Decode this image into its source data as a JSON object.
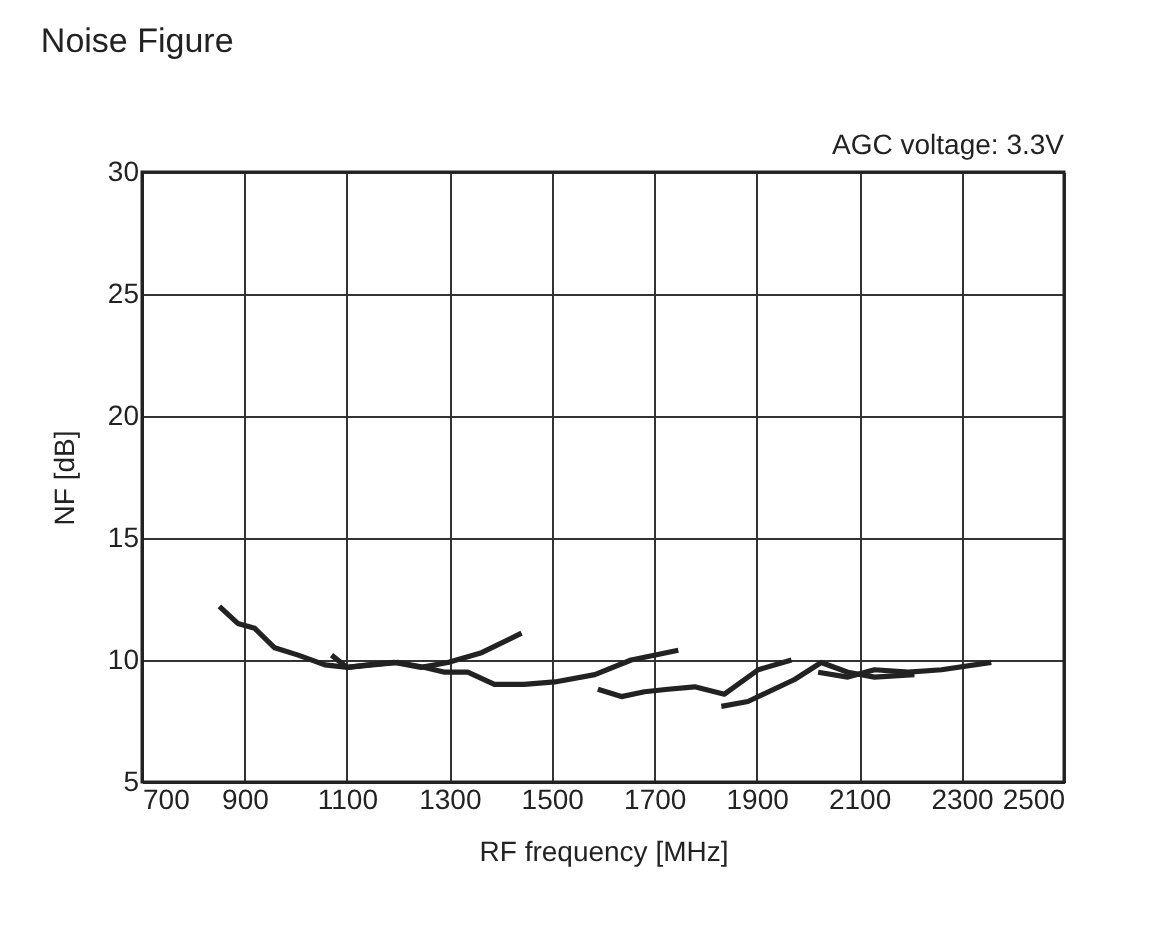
{
  "chart_data": {
    "type": "line",
    "title": "Noise Figure",
    "xlabel": "RF frequency [MHz]",
    "ylabel": "NF [dB]",
    "annotations": [
      "AGC voltage: 3.3V"
    ],
    "xlim": [
      700,
      2500
    ],
    "ylim": [
      5,
      30
    ],
    "xticks": [
      700,
      900,
      1100,
      1300,
      1500,
      1700,
      1900,
      2100,
      2300,
      2500
    ],
    "yticks": [
      5,
      10,
      15,
      20,
      25,
      30
    ],
    "grid": true,
    "marker": "none",
    "line_style": "solid",
    "series": [
      {
        "color": "#222222",
        "x": [
          851,
          887,
          920,
          959,
          1005,
          1057,
          1102,
          1141,
          1193,
          1245,
          1297,
          1363,
          1441
        ],
        "values": [
          12.2,
          11.5,
          11.3,
          10.5,
          10.2,
          9.8,
          9.7,
          9.8,
          9.9,
          9.7,
          9.9,
          10.3,
          11.1
        ]
      },
      {
        "color": "#222222",
        "x": [
          1070,
          1100,
          1150,
          1200,
          1250,
          1291,
          1336,
          1388,
          1446,
          1506,
          1584,
          1655,
          1747
        ],
        "values": [
          10.2,
          9.7,
          9.8,
          9.9,
          9.7,
          9.5,
          9.5,
          9.0,
          9.0,
          9.1,
          9.4,
          10.0,
          10.4
        ]
      },
      {
        "color": "#222222",
        "x": [
          1590,
          1636,
          1681,
          1727,
          1779,
          1837,
          1903,
          1968
        ],
        "values": [
          8.8,
          8.5,
          8.7,
          8.8,
          8.9,
          8.6,
          9.6,
          10.0
        ]
      },
      {
        "color": "#222222",
        "x": [
          1831,
          1883,
          1974,
          2026,
          2078,
          2130,
          2208
        ],
        "values": [
          8.1,
          8.3,
          9.2,
          9.9,
          9.5,
          9.3,
          9.4
        ]
      },
      {
        "color": "#222222",
        "x": [
          2020,
          2078,
          2130,
          2196,
          2261,
          2358
        ],
        "values": [
          9.5,
          9.3,
          9.6,
          9.5,
          9.6,
          9.9
        ]
      }
    ]
  }
}
